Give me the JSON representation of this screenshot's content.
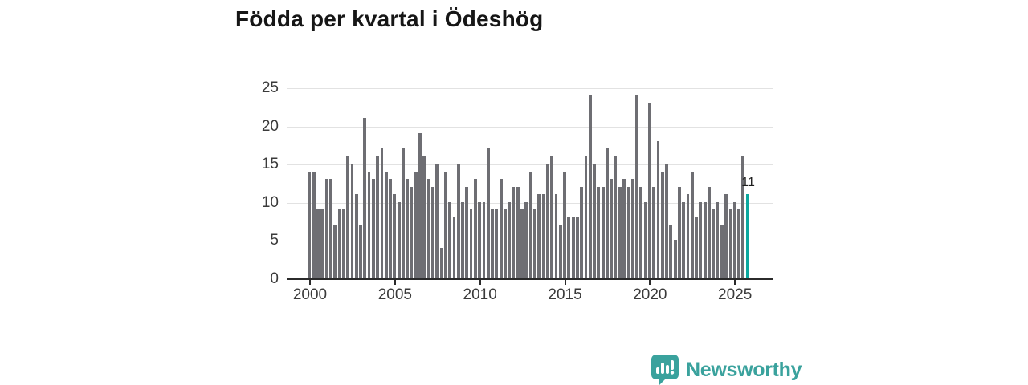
{
  "title": "Födda per kvartal i Ödeshög",
  "branding": {
    "logo_text": "Newsworthy",
    "logo_color": "#3aa29d",
    "logo_icon": "speech-bubble-bar-chart"
  },
  "chart_data": {
    "type": "bar",
    "title": "Födda per kvartal i Ödeshög",
    "xlabel": "",
    "ylabel": "",
    "x_start_year": 2000,
    "x_tick_labels": [
      "2000",
      "2005",
      "2010",
      "2015",
      "2020",
      "2025"
    ],
    "y_ticks": [
      0,
      5,
      10,
      15,
      20,
      25
    ],
    "ylim": [
      0,
      25
    ],
    "grid": "horizontal",
    "legend": "none",
    "bar_color": "#6e6e73",
    "highlight_color": "#0ca79e",
    "series": [
      {
        "name": "Födda per kvartal",
        "values": [
          14,
          14,
          9,
          9,
          13,
          13,
          7,
          9,
          9,
          16,
          15,
          11,
          7,
          21,
          14,
          13,
          16,
          17,
          14,
          13,
          11,
          10,
          17,
          13,
          12,
          14,
          19,
          16,
          13,
          12,
          15,
          4,
          14,
          10,
          8,
          15,
          10,
          12,
          9,
          13,
          10,
          10,
          17,
          9,
          9,
          13,
          9,
          10,
          12,
          12,
          9,
          10,
          14,
          9,
          11,
          11,
          15,
          16,
          11,
          7,
          14,
          8,
          8,
          8,
          12,
          16,
          24,
          15,
          12,
          12,
          17,
          13,
          16,
          12,
          13,
          12,
          13,
          24,
          12,
          10,
          23,
          12,
          18,
          14,
          15,
          7,
          5,
          12,
          10,
          11,
          14,
          8,
          10,
          10,
          12,
          9,
          10,
          7,
          11,
          9,
          10,
          9,
          16,
          11
        ]
      }
    ],
    "highlight_index": 103,
    "annotation": {
      "text": "11",
      "value": 11
    }
  }
}
